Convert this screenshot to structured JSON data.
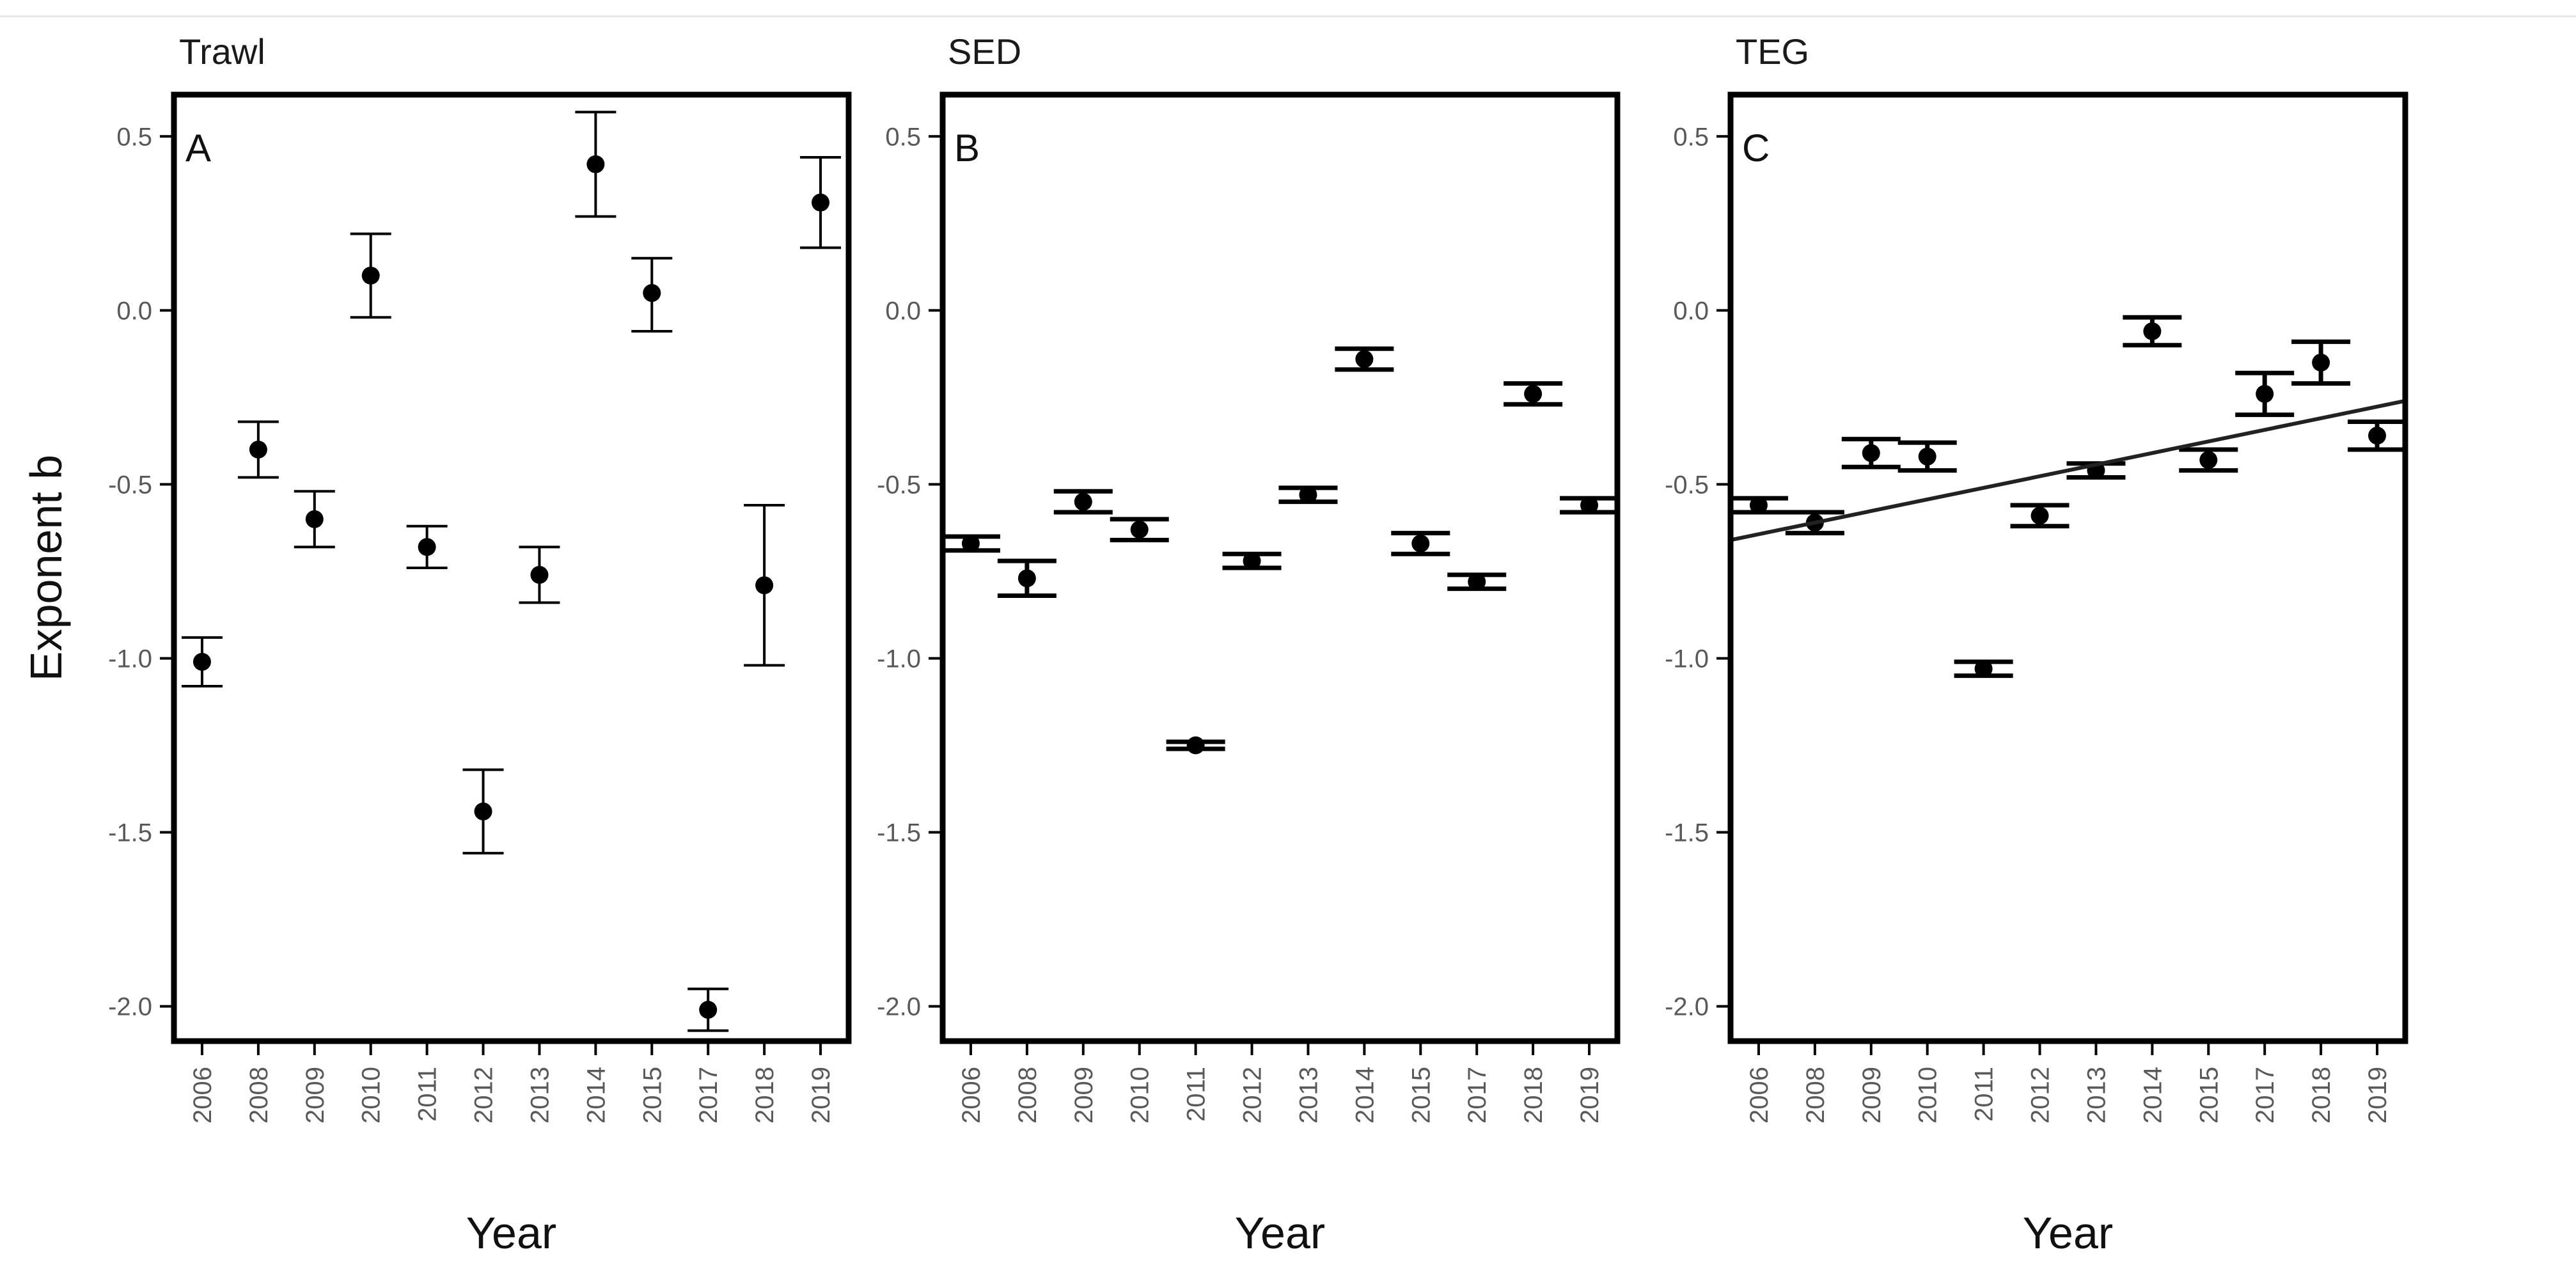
{
  "chart_data": {
    "type": "scatter",
    "y_label": "Exponent b",
    "x_label": "Year",
    "x": [
      "2006",
      "2008",
      "2009",
      "2010",
      "2011",
      "2012",
      "2013",
      "2014",
      "2015",
      "2017",
      "2018",
      "2019"
    ],
    "y_ticks": [
      0.5,
      0.0,
      -0.5,
      -1.0,
      -1.5,
      -2.0
    ],
    "y_tick_labels": [
      "0.5",
      "0.0",
      "-0.5",
      "-1.0",
      "-1.5",
      "-2.0"
    ],
    "ylim": [
      -2.1,
      0.62
    ],
    "grid": false,
    "panels": [
      {
        "title": "Trawl",
        "letter": "A",
        "y": [
          -1.01,
          -0.4,
          -0.6,
          0.1,
          -0.68,
          -1.44,
          -0.76,
          0.42,
          0.05,
          -2.01,
          -0.79,
          0.31
        ],
        "lower": [
          -1.08,
          -0.48,
          -0.68,
          -0.02,
          -0.74,
          -1.56,
          -0.84,
          0.27,
          -0.06,
          -2.07,
          -1.02,
          0.18
        ],
        "upper": [
          -0.94,
          -0.32,
          -0.52,
          0.22,
          -0.62,
          -1.32,
          -0.68,
          0.57,
          0.15,
          -1.95,
          -0.56,
          0.44
        ]
      },
      {
        "title": "SED",
        "letter": "B",
        "y": [
          -0.67,
          -0.77,
          -0.55,
          -0.63,
          -1.25,
          -0.72,
          -0.53,
          -0.14,
          -0.67,
          -0.78,
          -0.24,
          -0.56
        ],
        "lower": [
          -0.69,
          -0.82,
          -0.58,
          -0.66,
          -1.26,
          -0.74,
          -0.55,
          -0.17,
          -0.7,
          -0.8,
          -0.27,
          -0.58
        ],
        "upper": [
          -0.65,
          -0.72,
          -0.52,
          -0.6,
          -1.24,
          -0.7,
          -0.51,
          -0.11,
          -0.64,
          -0.76,
          -0.21,
          -0.54
        ]
      },
      {
        "title": "TEG",
        "letter": "C",
        "y": [
          -0.56,
          -0.61,
          -0.41,
          -0.42,
          -1.03,
          -0.59,
          -0.46,
          -0.06,
          -0.43,
          -0.24,
          -0.15,
          -0.36
        ],
        "lower": [
          -0.58,
          -0.64,
          -0.45,
          -0.46,
          -1.05,
          -0.62,
          -0.48,
          -0.1,
          -0.46,
          -0.3,
          -0.21,
          -0.4
        ],
        "upper": [
          -0.54,
          -0.58,
          -0.37,
          -0.38,
          -1.01,
          -0.56,
          -0.44,
          -0.02,
          -0.4,
          -0.18,
          -0.09,
          -0.32
        ],
        "trend_line": {
          "y_at_first": -0.66,
          "y_at_last": -0.26
        }
      }
    ]
  }
}
